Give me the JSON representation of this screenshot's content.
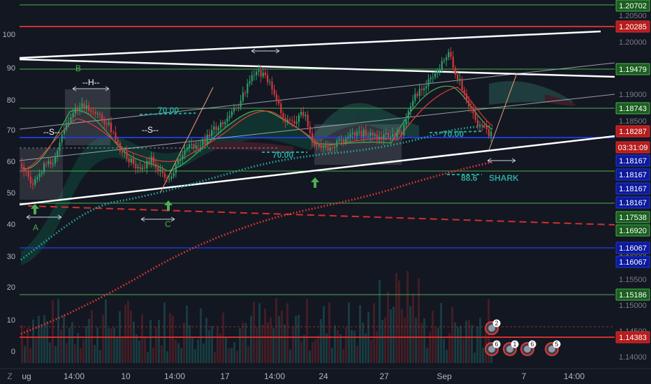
{
  "chart_data": {
    "type": "candlestick",
    "left_axis_ticks": [
      100,
      90,
      80,
      70,
      60,
      50,
      40,
      30,
      20,
      10,
      0
    ],
    "right_axis_ticks": [
      "1.20500",
      "1.20000",
      "1.19500",
      "1.19000",
      "1.18500",
      "1.18000",
      "1.17500",
      "1.17000",
      "1.16500",
      "1.16000",
      "1.15500",
      "1.15000",
      "1.14500",
      "1.14000"
    ],
    "x_ticks": [
      "ug",
      "14:00",
      "10",
      "14:00",
      "17",
      "14:00",
      "24",
      "27",
      "Sep",
      "7",
      "14:00"
    ],
    "price_badges": [
      {
        "text": "1.20702",
        "style": "green"
      },
      {
        "text": "1.20285",
        "style": "red"
      },
      {
        "text": "1.19479",
        "style": "green"
      },
      {
        "text": "1.18743",
        "style": "green"
      },
      {
        "text": "1.18287",
        "style": "red"
      },
      {
        "text": "03:31:09",
        "style": "red"
      },
      {
        "text": "1.18167",
        "style": "blue"
      },
      {
        "text": "1.18167",
        "style": "blue"
      },
      {
        "text": "1.18167",
        "style": "blue"
      },
      {
        "text": "1.18167",
        "style": "blue"
      },
      {
        "text": "1.17538",
        "style": "green"
      },
      {
        "text": "1.16920",
        "style": "green"
      },
      {
        "text": "1.16067",
        "style": "blue"
      },
      {
        "text": "1.16067",
        "style": "blue"
      },
      {
        "text": "1.15186",
        "style": "green"
      },
      {
        "text": "1.14383",
        "style": "red"
      }
    ],
    "annotations": [
      "A",
      "B",
      "C",
      "--S--",
      "--H--",
      "--S--",
      "70.00",
      "70.00",
      "70.00",
      "88.6",
      "SHARK"
    ],
    "event_badges": [
      "2",
      "6",
      "1",
      "6",
      "5"
    ]
  },
  "ui": {
    "corner_icon": "Z"
  },
  "colors": {
    "bg": "#131722",
    "green": "#4caf50",
    "red": "#d32f2f",
    "blue": "#1e3ad6",
    "white": "#ffffff",
    "teal": "#26a69a",
    "bull": "#2e9e6a",
    "bear": "#d1393c",
    "axis_text": "#b2b5be"
  }
}
